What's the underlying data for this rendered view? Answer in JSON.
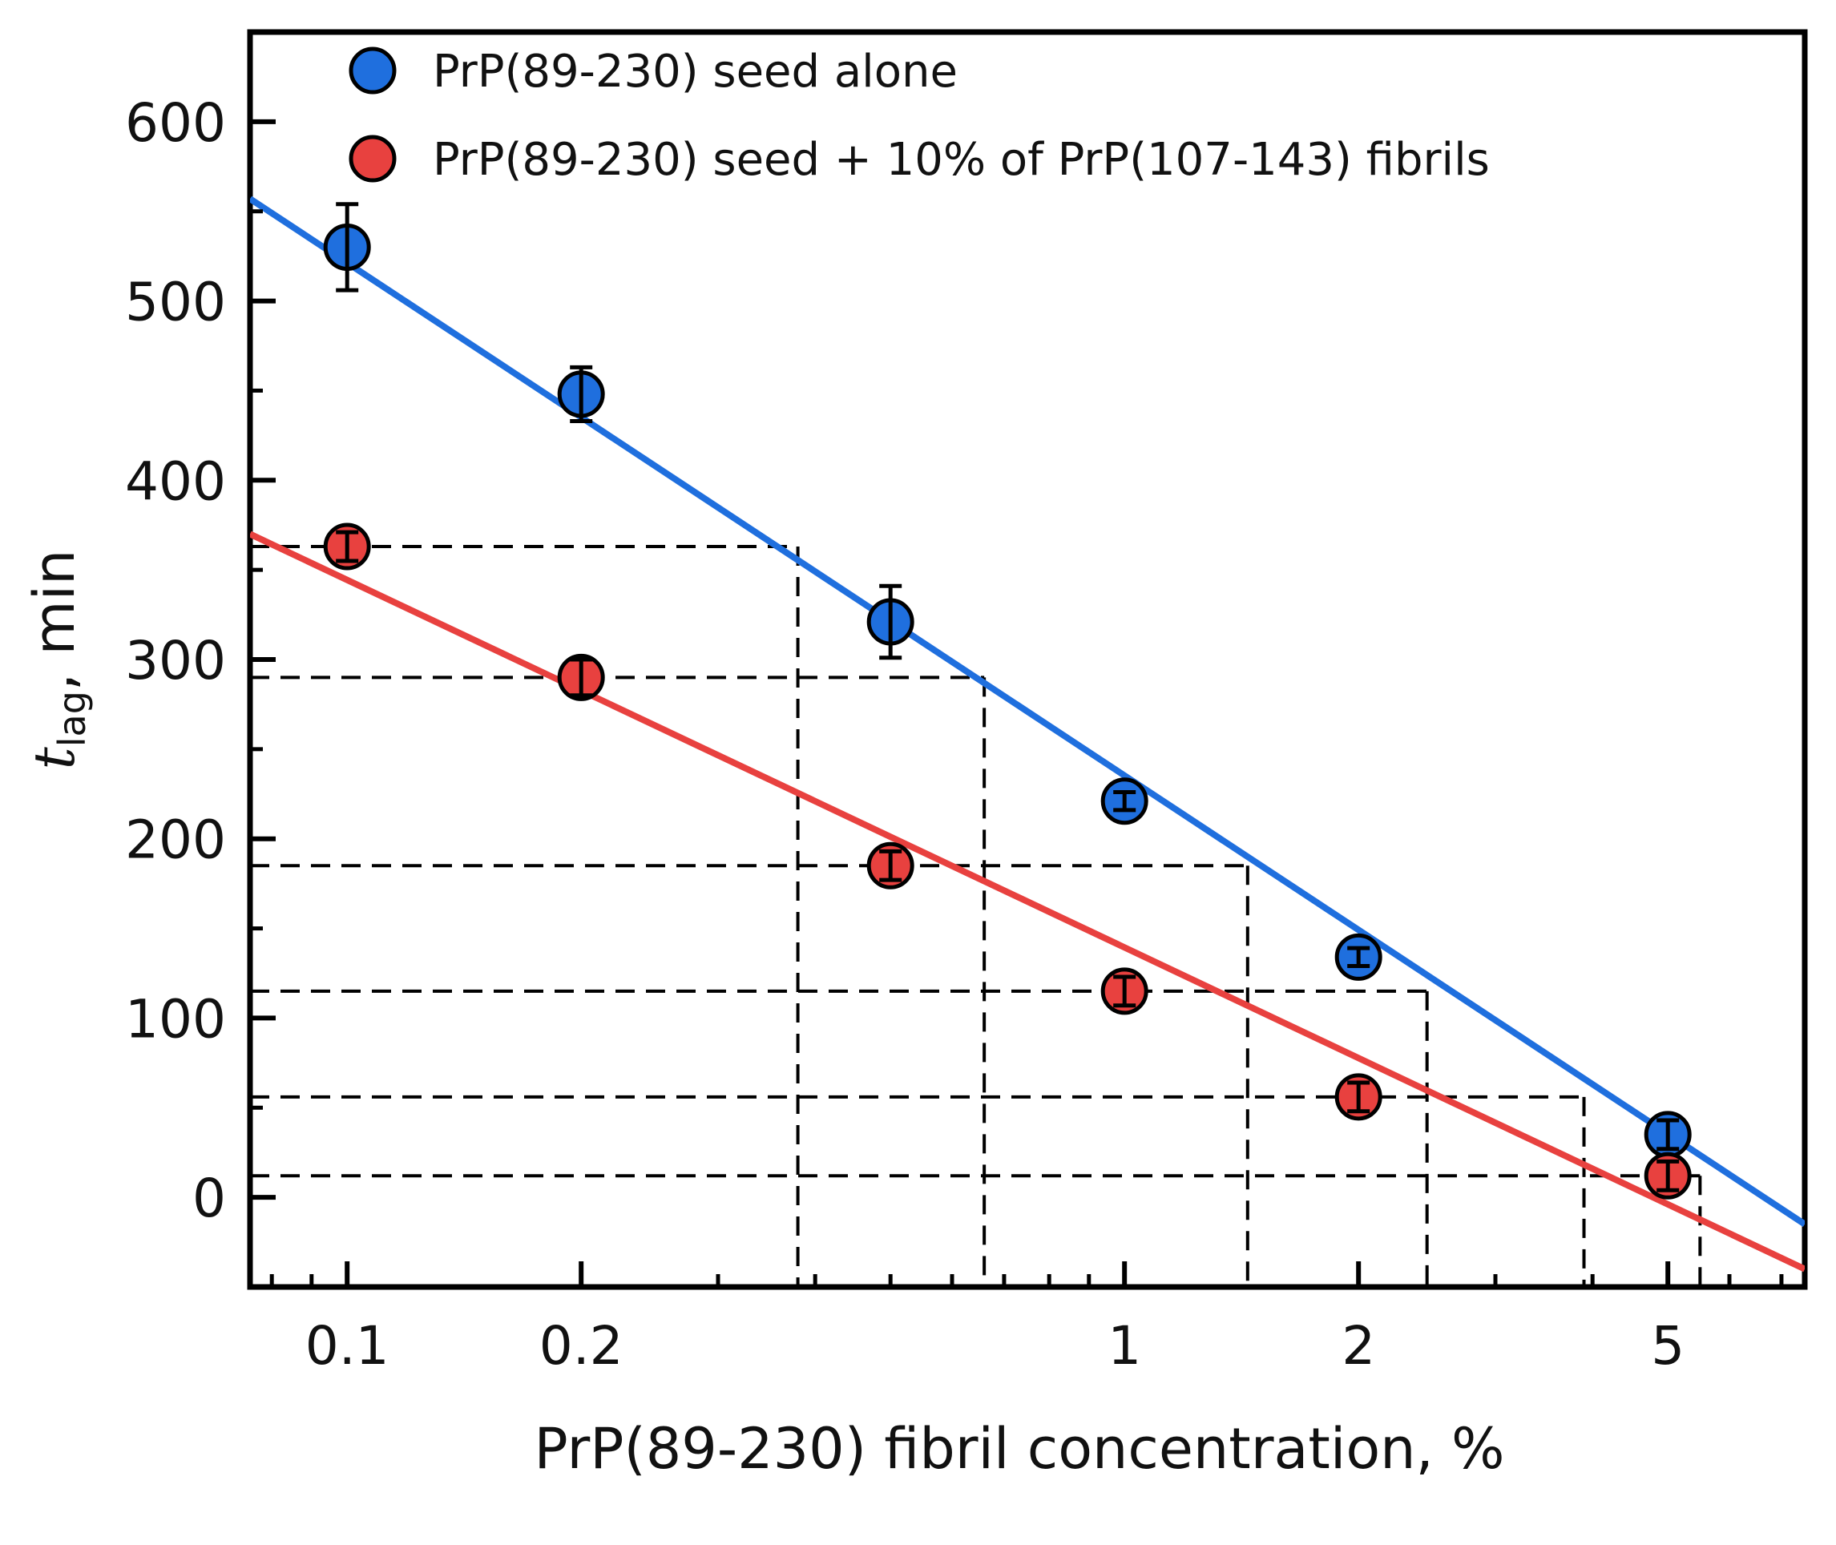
{
  "chart_data": {
    "type": "scatter",
    "xscale": "log",
    "xlabel": "PrP(89-230) fibril concentration, %",
    "ylabel_main": "t",
    "ylabel_sub": "lag",
    "ylabel_unit": ", min",
    "xlim": [
      0.075,
      7.5
    ],
    "ylim": [
      -50,
      650
    ],
    "xticks": [
      0.1,
      0.2,
      1,
      2,
      5
    ],
    "xtick_labels": [
      "0.1",
      "0.2",
      "1",
      "2",
      "5"
    ],
    "yticks": [
      0,
      100,
      200,
      300,
      400,
      500,
      600
    ],
    "ytick_labels": [
      "0",
      "100",
      "200",
      "300",
      "400",
      "500",
      "600"
    ],
    "legend_position": "top-left",
    "series": [
      {
        "name": "PrP(89-230) seed alone",
        "color": "#1f6fde",
        "points": [
          {
            "x": 0.1,
            "y": 530,
            "err": 24
          },
          {
            "x": 0.2,
            "y": 448,
            "err": 15
          },
          {
            "x": 0.5,
            "y": 321,
            "err": 20
          },
          {
            "x": 1,
            "y": 221,
            "err": 5
          },
          {
            "x": 2,
            "y": 134,
            "err": 5
          },
          {
            "x": 5,
            "y": 35,
            "err": 8
          }
        ],
        "fit": {
          "x": [
            0.075,
            7.5
          ],
          "y": [
            557,
            -15
          ]
        }
      },
      {
        "name": "PrP(89-230) seed + 10% of PrP(107-143) fibrils",
        "color": "#e8413f",
        "points": [
          {
            "x": 0.1,
            "y": 363,
            "err": 8
          },
          {
            "x": 0.2,
            "y": 290,
            "err": 10
          },
          {
            "x": 0.5,
            "y": 185,
            "err": 8
          },
          {
            "x": 1,
            "y": 115,
            "err": 8
          },
          {
            "x": 2,
            "y": 56,
            "err": 8
          },
          {
            "x": 5,
            "y": 12,
            "err": 8
          }
        ],
        "fit": {
          "x": [
            0.075,
            7.5
          ],
          "y": [
            370,
            -40
          ]
        }
      }
    ],
    "guide_lines": [
      {
        "y": 363,
        "x": 0.38
      },
      {
        "y": 290,
        "x": 0.66
      },
      {
        "y": 185,
        "x": 1.44
      },
      {
        "y": 115,
        "x": 2.45
      },
      {
        "y": 56,
        "x": 3.9
      },
      {
        "y": 12,
        "x": 5.5
      }
    ]
  }
}
